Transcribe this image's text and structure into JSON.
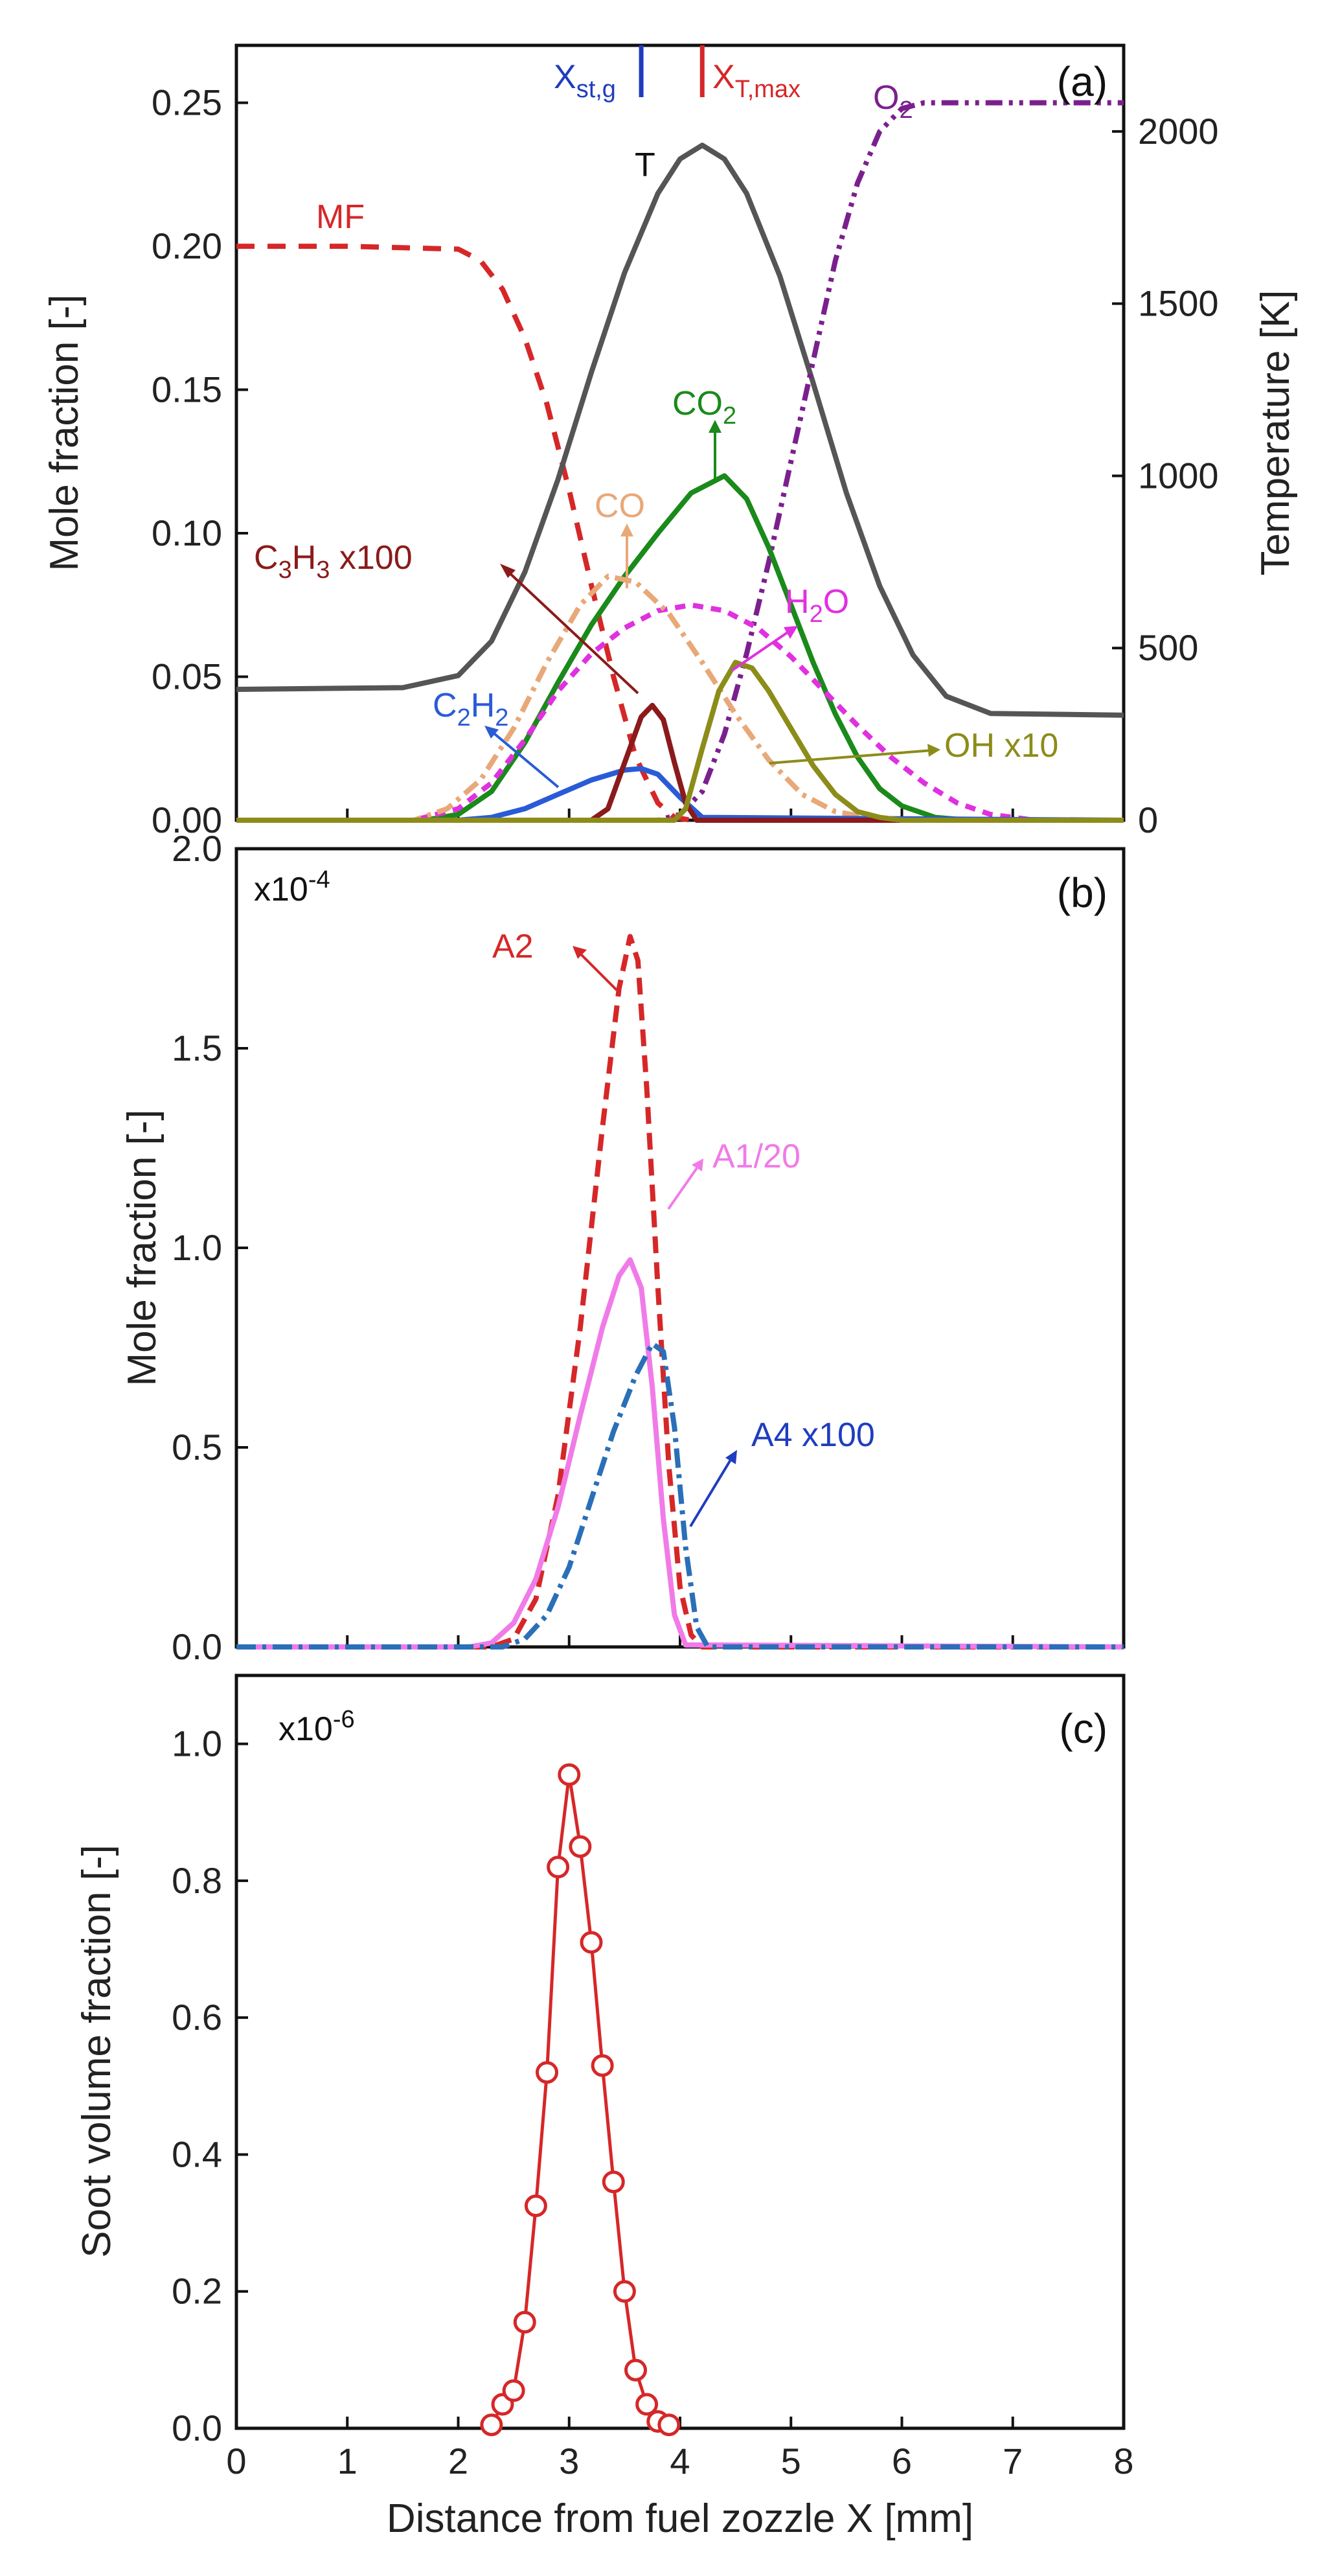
{
  "figure": {
    "xlabel": "Distance from fuel zozzle X [mm]",
    "xlim": [
      0,
      8
    ],
    "xticks": [
      0,
      1,
      2,
      3,
      4,
      5,
      6,
      7,
      8
    ]
  },
  "chart_data": [
    {
      "type": "line",
      "panel_label": "(a)",
      "ylabel": "Mole fraction [-]",
      "ylim": [
        0,
        0.27
      ],
      "yticks": [
        "0.00",
        "0.05",
        "0.10",
        "0.15",
        "0.20",
        "0.25"
      ],
      "y2label": "Temperature [K]",
      "y2lim": [
        0,
        2250
      ],
      "y2ticks": [
        "0",
        "500",
        "1000",
        "1500",
        "2000"
      ],
      "series": [
        {
          "name": "MF",
          "label": "MF",
          "axis": "left",
          "color": "#d62728",
          "dash": "28,20",
          "x": [
            0,
            1,
            2,
            2.2,
            2.4,
            2.6,
            2.8,
            3.0,
            3.2,
            3.4,
            3.6,
            3.8,
            3.95,
            4.1,
            8
          ],
          "y": [
            0.2,
            0.2,
            0.199,
            0.195,
            0.185,
            0.168,
            0.145,
            0.115,
            0.082,
            0.05,
            0.022,
            0.006,
            0.001,
            0,
            0
          ]
        },
        {
          "name": "T",
          "label": "T",
          "axis": "right",
          "color": "#555555",
          "dash": "",
          "x": [
            0,
            1.5,
            2.0,
            2.3,
            2.6,
            2.9,
            3.2,
            3.5,
            3.8,
            4.0,
            4.2,
            4.4,
            4.6,
            4.9,
            5.2,
            5.5,
            5.8,
            6.1,
            6.4,
            6.8,
            8
          ],
          "y": [
            380,
            385,
            420,
            520,
            720,
            990,
            1300,
            1590,
            1820,
            1920,
            1960,
            1920,
            1820,
            1580,
            1270,
            950,
            680,
            480,
            360,
            310,
            305
          ]
        },
        {
          "name": "O2",
          "label": "O2",
          "axis": "left",
          "color": "#7b1f8e",
          "dash": "26,10,6,10,6,10",
          "x": [
            0,
            3.8,
            4.0,
            4.2,
            4.4,
            4.6,
            4.8,
            5.0,
            5.2,
            5.4,
            5.6,
            5.8,
            6.0,
            6.2,
            6.5,
            7,
            8
          ],
          "y": [
            0,
            0,
            0.002,
            0.01,
            0.03,
            0.058,
            0.09,
            0.125,
            0.16,
            0.195,
            0.222,
            0.24,
            0.248,
            0.25,
            0.25,
            0.25,
            0.25
          ]
        },
        {
          "name": "CO2",
          "label": "CO2",
          "axis": "left",
          "color": "#1a8a1a",
          "dash": "",
          "x": [
            0,
            1.7,
            2.0,
            2.3,
            2.6,
            2.9,
            3.2,
            3.5,
            3.8,
            4.1,
            4.4,
            4.6,
            4.8,
            5.0,
            5.2,
            5.4,
            5.6,
            5.8,
            6.0,
            6.3,
            6.6,
            8
          ],
          "y": [
            0,
            0,
            0.002,
            0.01,
            0.027,
            0.048,
            0.068,
            0.085,
            0.1,
            0.114,
            0.12,
            0.112,
            0.095,
            0.075,
            0.055,
            0.037,
            0.022,
            0.011,
            0.005,
            0.001,
            0,
            0
          ]
        },
        {
          "name": "H2O",
          "label": "H2O",
          "axis": "left",
          "color": "#e030e0",
          "dash": "16,12",
          "x": [
            0,
            1.6,
            2.0,
            2.3,
            2.6,
            2.9,
            3.2,
            3.5,
            3.8,
            4.1,
            4.4,
            4.7,
            5.0,
            5.3,
            5.6,
            5.9,
            6.2,
            6.5,
            6.8,
            7.2,
            8
          ],
          "y": [
            0,
            0,
            0.004,
            0.013,
            0.028,
            0.045,
            0.058,
            0.067,
            0.073,
            0.075,
            0.073,
            0.067,
            0.057,
            0.045,
            0.033,
            0.022,
            0.013,
            0.006,
            0.002,
            0,
            0
          ]
        },
        {
          "name": "CO",
          "label": "CO",
          "axis": "left",
          "color": "#e8a878",
          "dash": "26,10,6,10",
          "x": [
            0,
            1.6,
            1.9,
            2.2,
            2.5,
            2.8,
            3.1,
            3.35,
            3.6,
            3.9,
            4.2,
            4.5,
            4.8,
            5.1,
            5.4,
            5.7,
            6.0,
            8
          ],
          "y": [
            0,
            0,
            0.004,
            0.014,
            0.032,
            0.055,
            0.075,
            0.085,
            0.083,
            0.072,
            0.055,
            0.037,
            0.021,
            0.009,
            0.003,
            0.001,
            0,
            0
          ]
        },
        {
          "name": "C2H2",
          "label": "C2H2",
          "axis": "left",
          "color": "#2a5bd7",
          "dash": "",
          "x": [
            0,
            2.0,
            2.3,
            2.6,
            2.9,
            3.2,
            3.5,
            3.65,
            3.8,
            4.0,
            4.2,
            8
          ],
          "y": [
            0,
            0,
            0.001,
            0.004,
            0.009,
            0.014,
            0.0175,
            0.018,
            0.016,
            0.008,
            0.001,
            0
          ]
        },
        {
          "name": "C3H3 x100",
          "label": "C3H3 x100",
          "axis": "left",
          "color": "#8b1a1a",
          "dash": "",
          "x": [
            0,
            3.2,
            3.35,
            3.5,
            3.65,
            3.75,
            3.85,
            3.95,
            4.05,
            4.15,
            8
          ],
          "y": [
            0,
            0,
            0.004,
            0.02,
            0.036,
            0.04,
            0.035,
            0.02,
            0.006,
            0,
            0
          ]
        },
        {
          "name": "OH x10",
          "label": "OH x10",
          "axis": "left",
          "color": "#8c8c1a",
          "dash": "",
          "x": [
            0,
            3.95,
            4.05,
            4.2,
            4.35,
            4.5,
            4.65,
            4.8,
            5.0,
            5.2,
            5.4,
            5.6,
            5.8,
            6.0,
            8
          ],
          "y": [
            0,
            0,
            0.004,
            0.025,
            0.045,
            0.055,
            0.053,
            0.045,
            0.032,
            0.019,
            0.009,
            0.003,
            0.001,
            0,
            0
          ]
        }
      ],
      "markers": [
        {
          "label_main": "X",
          "label_sub": "st,g",
          "x": 3.65,
          "color": "#1f3dbf"
        },
        {
          "label_main": "X",
          "label_sub": "T,max",
          "x": 4.2,
          "color": "#d62728"
        }
      ]
    },
    {
      "type": "line",
      "panel_label": "(b)",
      "multiplier_base": "x10",
      "multiplier_exp": "-4",
      "ylabel": "Mole fraction [-]",
      "ylim": [
        0,
        2.0
      ],
      "yticks": [
        "0.0",
        "0.5",
        "1.0",
        "1.5",
        "2.0"
      ],
      "series": [
        {
          "name": "A2",
          "label": "A2",
          "color": "#d62728",
          "dash": "26,14",
          "x": [
            0,
            2.3,
            2.5,
            2.7,
            2.9,
            3.1,
            3.3,
            3.45,
            3.55,
            3.62,
            3.7,
            3.8,
            3.9,
            4.0,
            4.1,
            4.2,
            8
          ],
          "y": [
            0,
            0,
            0.02,
            0.12,
            0.38,
            0.8,
            1.3,
            1.65,
            1.78,
            1.72,
            1.4,
            0.9,
            0.45,
            0.15,
            0.03,
            0,
            0
          ]
        },
        {
          "name": "A1/20",
          "label": "A1/20",
          "color": "#f07be8",
          "dash": "",
          "x": [
            0,
            2.1,
            2.3,
            2.5,
            2.7,
            2.9,
            3.1,
            3.3,
            3.45,
            3.55,
            3.65,
            3.75,
            3.85,
            3.95,
            4.05,
            8
          ],
          "y": [
            0,
            0,
            0.01,
            0.06,
            0.17,
            0.35,
            0.58,
            0.8,
            0.93,
            0.97,
            0.9,
            0.65,
            0.32,
            0.08,
            0.005,
            0
          ]
        },
        {
          "name": "A4 x100",
          "label": "A4 x100",
          "color": "#2a6fb8",
          "dash": "30,10,6,10",
          "x": [
            0,
            2.4,
            2.6,
            2.8,
            3.0,
            3.2,
            3.4,
            3.6,
            3.75,
            3.85,
            3.95,
            4.05,
            4.15,
            4.25,
            8
          ],
          "y": [
            0,
            0,
            0.02,
            0.08,
            0.2,
            0.37,
            0.54,
            0.68,
            0.76,
            0.74,
            0.55,
            0.25,
            0.05,
            0,
            0
          ]
        }
      ]
    },
    {
      "type": "scatter",
      "panel_label": "(c)",
      "multiplier_base": "x10",
      "multiplier_exp": "-6",
      "ylabel": "Soot volume fraction [-]",
      "ylim": [
        0,
        1.1
      ],
      "yticks": [
        "0.0",
        "0.2",
        "0.4",
        "0.6",
        "0.8",
        "1.0"
      ],
      "series": [
        {
          "name": "soot",
          "color": "#d62728",
          "x": [
            2.3,
            2.4,
            2.5,
            2.6,
            2.7,
            2.8,
            2.9,
            3.0,
            3.1,
            3.2,
            3.3,
            3.4,
            3.5,
            3.6,
            3.7,
            3.8,
            3.9
          ],
          "y": [
            0.005,
            0.035,
            0.055,
            0.155,
            0.325,
            0.52,
            0.82,
            0.955,
            0.85,
            0.71,
            0.53,
            0.36,
            0.2,
            0.085,
            0.035,
            0.01,
            0.005
          ]
        }
      ]
    }
  ]
}
